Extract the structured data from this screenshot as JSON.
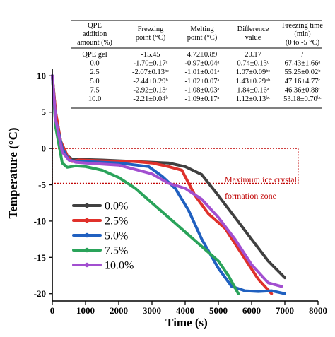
{
  "chart_data": {
    "type": "line",
    "xlabel": "Time (s)",
    "ylabel": "Temperature (°C)",
    "xlim": [
      0,
      8000
    ],
    "ylim": [
      -21,
      11
    ],
    "x_ticks": [
      0,
      1000,
      2000,
      3000,
      4000,
      5000,
      6000,
      7000,
      8000
    ],
    "y_ticks": [
      10,
      5,
      0,
      -5,
      -10,
      -15,
      -20
    ],
    "grid": false,
    "legend_position": "bottom-left",
    "series": [
      {
        "name": "0.0%",
        "color": "#404040",
        "x": [
          0,
          100,
          250,
          450,
          600,
          800,
          1500,
          2500,
          3500,
          4000,
          4500,
          5000,
          5500,
          6000,
          6500,
          7000
        ],
        "y": [
          10,
          5,
          1,
          -1,
          -1.5,
          -1.5,
          -1.6,
          -1.8,
          -2.0,
          -2.5,
          -3.6,
          -6.5,
          -9.5,
          -12.5,
          -15.5,
          -17.8
        ]
      },
      {
        "name": "2.5%",
        "color": "#e0312b",
        "x": [
          0,
          100,
          250,
          450,
          600,
          800,
          1500,
          2500,
          3000,
          3500,
          3900,
          4300,
          4700,
          5200,
          5700,
          6200,
          6600
        ],
        "y": [
          10,
          5,
          1,
          -1,
          -1.8,
          -1.6,
          -1.7,
          -1.8,
          -2.0,
          -2.5,
          -3.0,
          -6.5,
          -9.0,
          -11.0,
          -14.5,
          -18.0,
          -20.0
        ]
      },
      {
        "name": "5.0%",
        "color": "#2060c0",
        "x": [
          0,
          100,
          300,
          500,
          700,
          1000,
          2000,
          2900,
          3300,
          3700,
          4100,
          4500,
          5000,
          5400,
          5800,
          6200,
          6600,
          7000
        ],
        "y": [
          10,
          4,
          0,
          -1.6,
          -1.8,
          -1.8,
          -2.0,
          -2.5,
          -3.8,
          -5.5,
          -8.5,
          -12.5,
          -16.5,
          -19.0,
          -19.6,
          -19.7,
          -19.6,
          -20.0
        ]
      },
      {
        "name": "7.5%",
        "color": "#2aa35a",
        "x": [
          0,
          100,
          300,
          450,
          700,
          1000,
          1500,
          2000,
          2500,
          3000,
          3500,
          4000,
          4500,
          5000,
          5300,
          5600
        ],
        "y": [
          10,
          3,
          -2,
          -2.6,
          -2.4,
          -2.5,
          -3.0,
          -4.0,
          -5.5,
          -7.5,
          -9.5,
          -11.5,
          -13.5,
          -15.5,
          -17.5,
          -20.0
        ]
      },
      {
        "name": "10.0%",
        "color": "#a24fd0",
        "x": [
          0,
          100,
          300,
          500,
          700,
          1000,
          2000,
          3000,
          3500,
          4000,
          4500,
          5000,
          5500,
          6000,
          6500,
          6900
        ],
        "y": [
          10,
          4,
          -0.5,
          -1.6,
          -1.9,
          -2.0,
          -2.3,
          -3.5,
          -4.8,
          -5.5,
          -7.0,
          -9.5,
          -12.5,
          -16.0,
          -18.5,
          -19.0
        ]
      }
    ],
    "zone": {
      "x_range": [
        0,
        7400
      ],
      "y_range": [
        -4.8,
        0
      ],
      "label_line1": "Maximum ice crystal",
      "label_line2": "formation zone",
      "color": "#c00000"
    },
    "table": {
      "headers": [
        [
          "QPE",
          "addition",
          "amount (%)"
        ],
        [
          "Freezing",
          "point (°C)"
        ],
        [
          "Melting",
          "point (°C)"
        ],
        [
          "Difference",
          "value"
        ],
        [
          "Freezing time",
          "(min)",
          "(0 to -5 °C)"
        ]
      ],
      "rows": [
        [
          "QPE gel",
          "-15.45",
          "4.72±0.89",
          "20.17",
          "/"
        ],
        [
          "0.0",
          "-1.70±0.17ᶜ",
          "-0.97±0.04ᵃ",
          "0.74±0.13ᶜ",
          "67.43±1.66ᵃ"
        ],
        [
          "2.5",
          "-2.07±0.13ᵇᶜ",
          "-1.01±0.01ᵃ",
          "1.07±0.09ᵇᶜ",
          "55.25±0.02ᵇ"
        ],
        [
          "5.0",
          "-2.44±0.29ᵇ",
          "-1.02±0.07ᵃ",
          "1.43±0.29ᵃᵇ",
          "47.16±4.77ᶜ"
        ],
        [
          "7.5",
          "-2.92±0.13ᵃ",
          "-1.08±0.03ᵃ",
          "1.84±0.16ᵃ",
          "46.36±0.88ᶜ"
        ],
        [
          "10.0",
          "-2.21±0.04ᵇ",
          "-1.09±0.17ᵃ",
          "1.12±0.13ᵇᶜ",
          "53.18±0.70ᵇᶜ"
        ]
      ]
    }
  }
}
